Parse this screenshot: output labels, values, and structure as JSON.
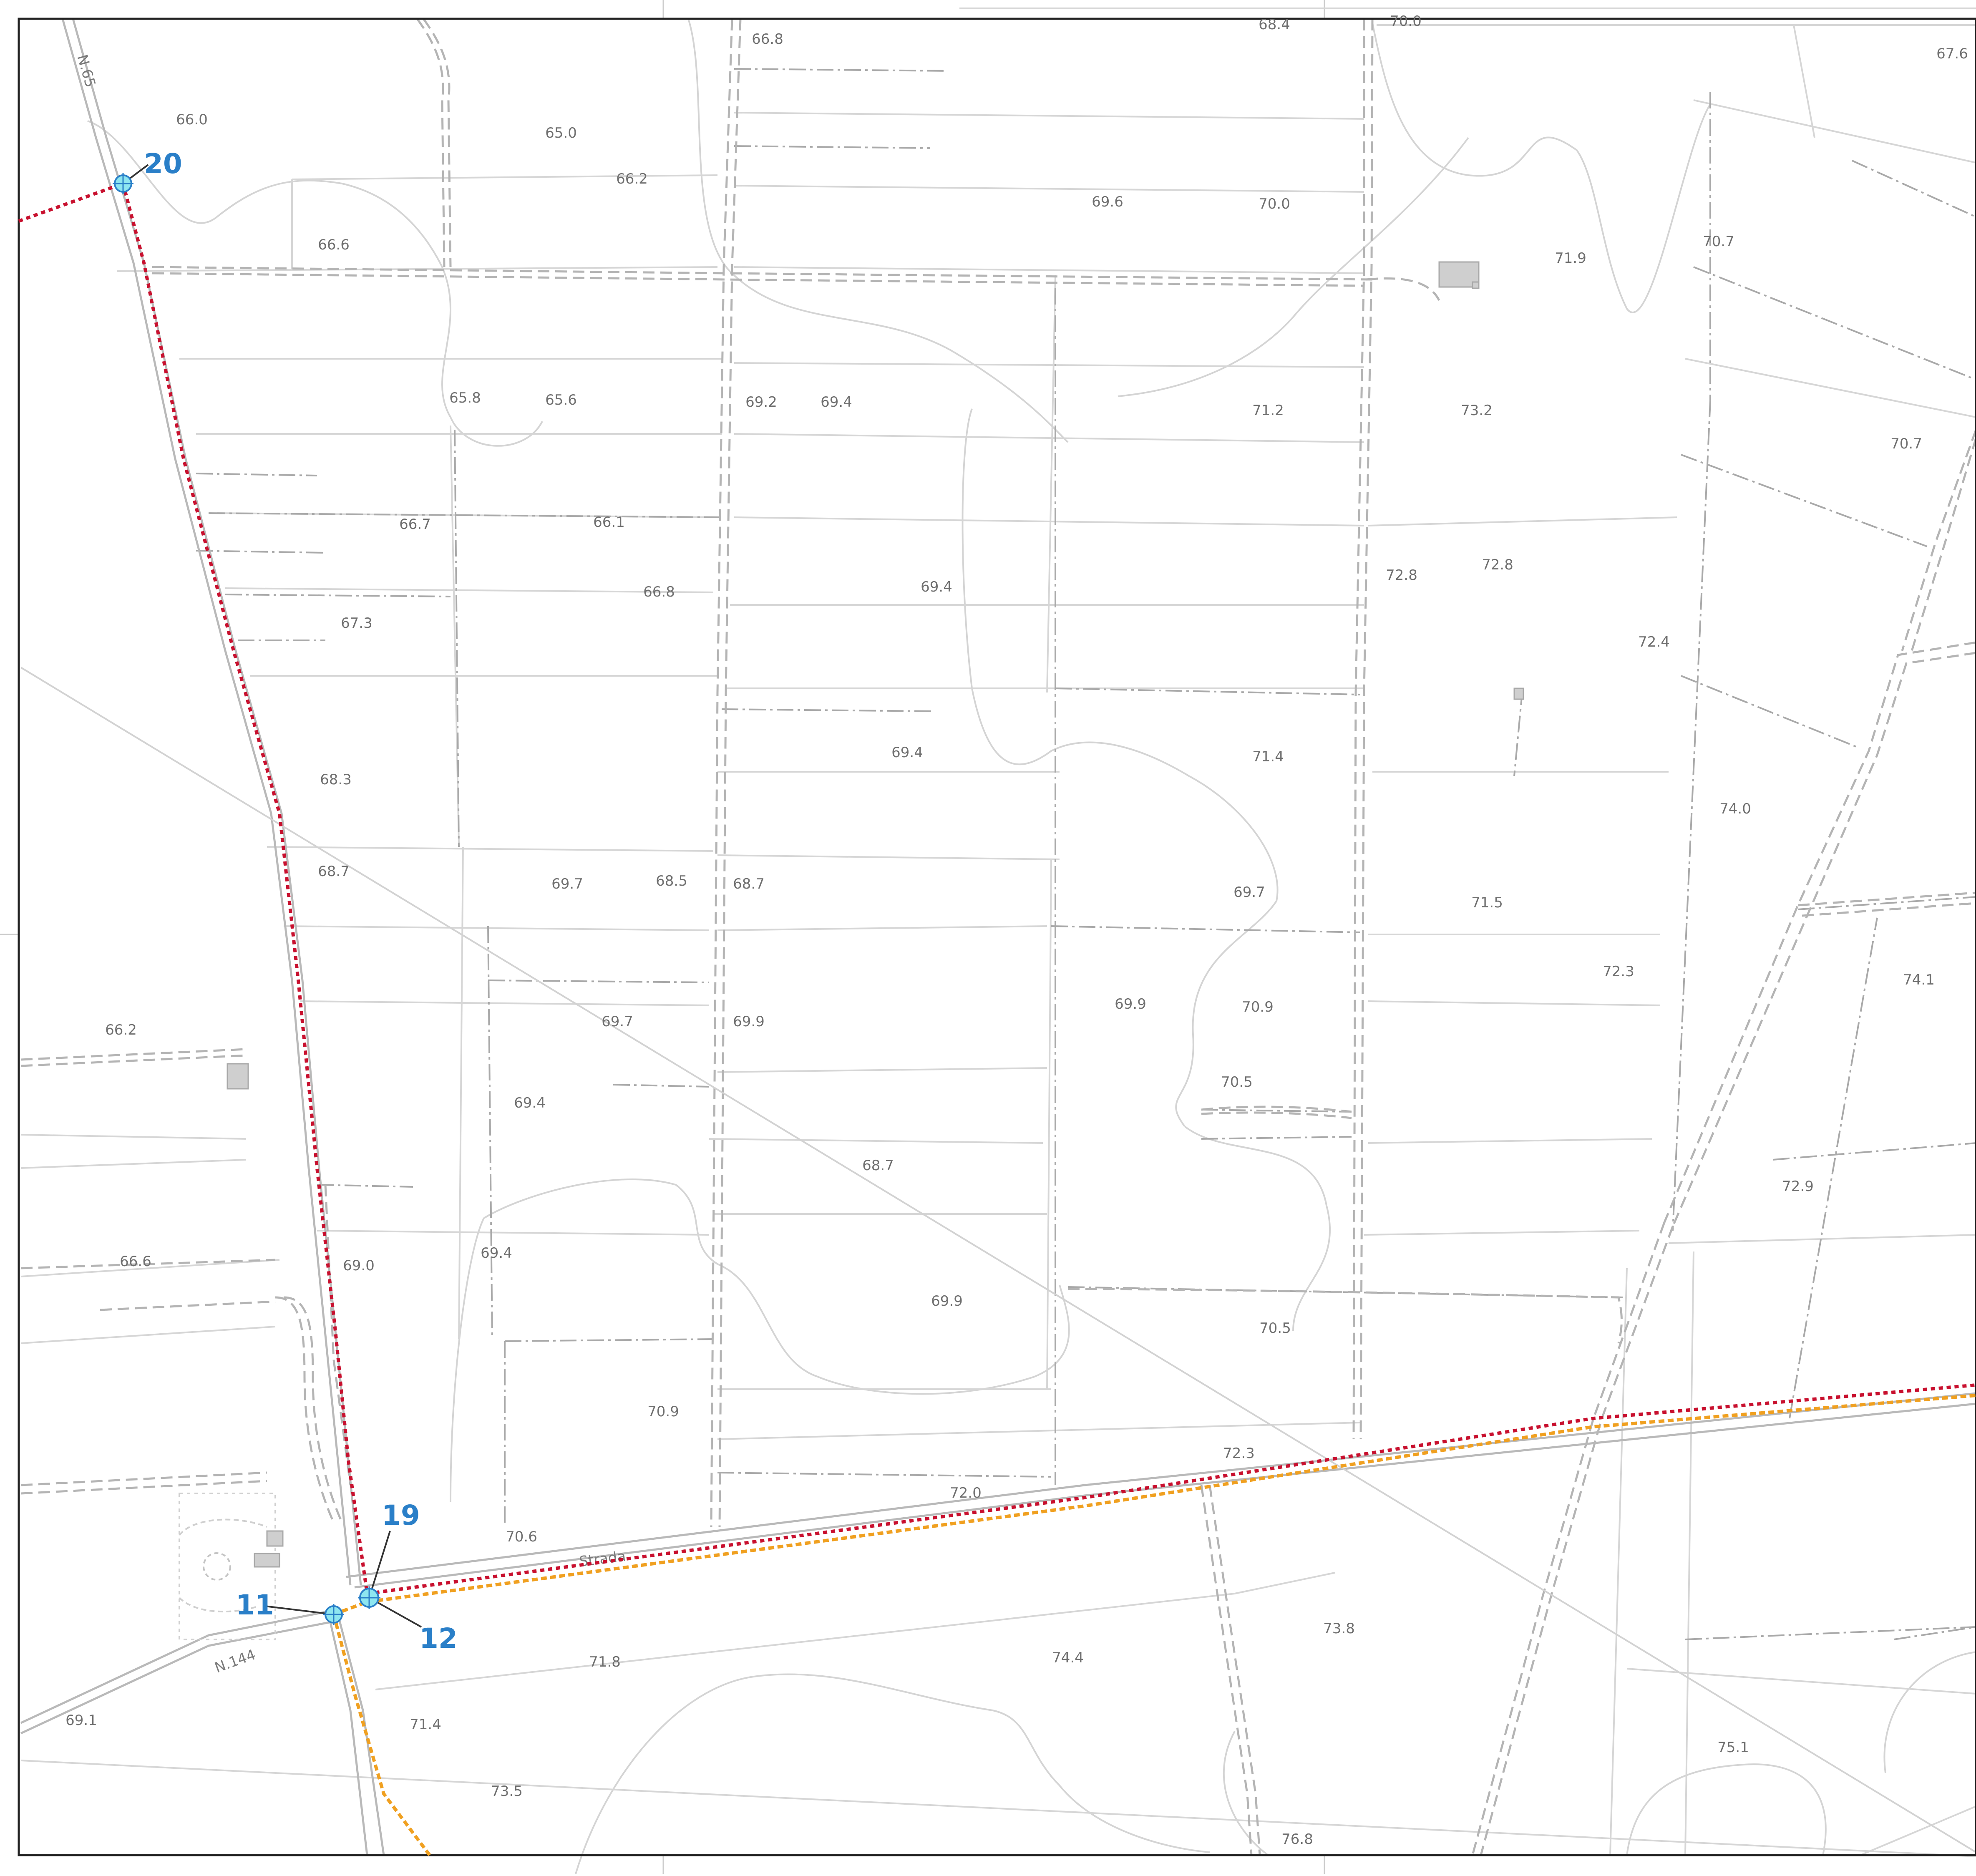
{
  "colors": {
    "frame": "#222222",
    "field_line": "#c9c9c9",
    "dashdot_line": "#a9a9a9",
    "contour": "#d0d0d0",
    "road_casing": "#bdbdbd",
    "route_red": "#c8102e",
    "route_orange": "#f0a020",
    "node_fill": "#8ee6f0",
    "node_stroke": "#2a7fc8",
    "node_label": "#2a7fc8",
    "elevation_text": "#6f6f6f"
  },
  "roads": {
    "n65": "N.65",
    "n144": "N.144",
    "strada": "Strada"
  },
  "nodes": [
    {
      "id": "node-20",
      "label": "20"
    },
    {
      "id": "node-19",
      "label": "19"
    },
    {
      "id": "node-11",
      "label": "11"
    },
    {
      "id": "node-12",
      "label": "12"
    }
  ],
  "elevations": [
    "68.4",
    "70.0",
    "66.8",
    "67.6",
    "66.0",
    "65.0",
    "66.2",
    "69.6",
    "70.0",
    "70.7",
    "71.9",
    "66.6",
    "65.8",
    "65.6",
    "69.2",
    "69.4",
    "71.2",
    "73.2",
    "70.7",
    "66.7",
    "66.1",
    "66.8",
    "69.4",
    "72.8",
    "72.8",
    "67.3",
    "72.4",
    "69.4",
    "71.4",
    "68.3",
    "74.0",
    "68.7",
    "69.7",
    "68.5",
    "68.7",
    "69.7",
    "71.5",
    "72.3",
    "74.1",
    "66.2",
    "69.7",
    "69.9",
    "69.9",
    "70.9",
    "70.5",
    "69.4",
    "68.7",
    "72.9",
    "66.6",
    "69.0",
    "69.4",
    "69.9",
    "70.5",
    "70.9",
    "72.3",
    "72.0",
    "70.6",
    "73.8",
    "71.8",
    "74.4",
    "69.1",
    "71.4",
    "73.5",
    "75.1",
    "76.8"
  ]
}
